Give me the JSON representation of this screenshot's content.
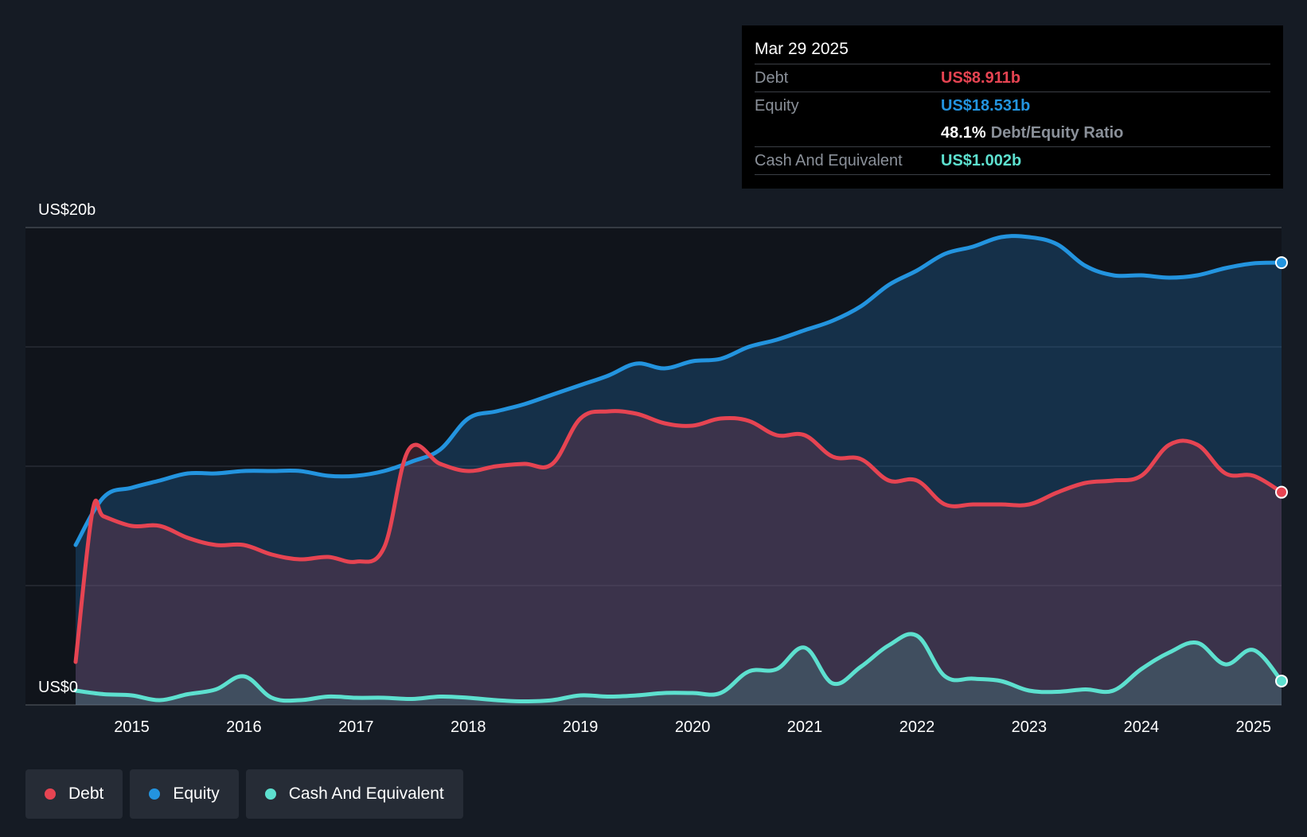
{
  "chart_data": {
    "type": "area",
    "title": "",
    "xlabel": "",
    "ylabel": "",
    "ylim": [
      0,
      20
    ],
    "y_unit": "US$ billions",
    "y_tick_labels": [
      {
        "value": 20,
        "label": "US$20b"
      },
      {
        "value": 0,
        "label": "US$0"
      }
    ],
    "gridlines_y": [
      0,
      5,
      10,
      15,
      20
    ],
    "x_range": [
      2014.5,
      2025.25
    ],
    "x_ticks": [
      2015,
      2016,
      2017,
      2018,
      2019,
      2020,
      2021,
      2022,
      2023,
      2024,
      2025
    ],
    "series": [
      {
        "name": "Equity",
        "color": "#2394df",
        "points": [
          [
            2014.5,
            6.7
          ],
          [
            2014.75,
            8.7
          ],
          [
            2015.0,
            9.1
          ],
          [
            2015.25,
            9.4
          ],
          [
            2015.5,
            9.7
          ],
          [
            2015.75,
            9.7
          ],
          [
            2016.0,
            9.8
          ],
          [
            2016.25,
            9.8
          ],
          [
            2016.5,
            9.8
          ],
          [
            2016.75,
            9.6
          ],
          [
            2017.0,
            9.6
          ],
          [
            2017.25,
            9.8
          ],
          [
            2017.5,
            10.2
          ],
          [
            2017.75,
            10.7
          ],
          [
            2018.0,
            12.0
          ],
          [
            2018.25,
            12.3
          ],
          [
            2018.5,
            12.6
          ],
          [
            2018.75,
            13.0
          ],
          [
            2019.0,
            13.4
          ],
          [
            2019.25,
            13.8
          ],
          [
            2019.5,
            14.3
          ],
          [
            2019.75,
            14.1
          ],
          [
            2020.0,
            14.4
          ],
          [
            2020.25,
            14.5
          ],
          [
            2020.5,
            15.0
          ],
          [
            2020.75,
            15.3
          ],
          [
            2021.0,
            15.7
          ],
          [
            2021.25,
            16.1
          ],
          [
            2021.5,
            16.7
          ],
          [
            2021.75,
            17.6
          ],
          [
            2022.0,
            18.2
          ],
          [
            2022.25,
            18.9
          ],
          [
            2022.5,
            19.2
          ],
          [
            2022.75,
            19.6
          ],
          [
            2023.0,
            19.6
          ],
          [
            2023.25,
            19.3
          ],
          [
            2023.5,
            18.4
          ],
          [
            2023.75,
            18.0
          ],
          [
            2024.0,
            18.0
          ],
          [
            2024.25,
            17.9
          ],
          [
            2024.5,
            18.0
          ],
          [
            2024.75,
            18.3
          ],
          [
            2025.0,
            18.5
          ],
          [
            2025.25,
            18.531
          ]
        ]
      },
      {
        "name": "Debt",
        "color": "#e64452",
        "points": [
          [
            2014.5,
            1.8
          ],
          [
            2014.65,
            8.1
          ],
          [
            2014.75,
            7.9
          ],
          [
            2015.0,
            7.5
          ],
          [
            2015.25,
            7.5
          ],
          [
            2015.5,
            7.0
          ],
          [
            2015.75,
            6.7
          ],
          [
            2016.0,
            6.7
          ],
          [
            2016.25,
            6.3
          ],
          [
            2016.5,
            6.1
          ],
          [
            2016.75,
            6.2
          ],
          [
            2017.0,
            6.0
          ],
          [
            2017.25,
            6.6
          ],
          [
            2017.47,
            10.7
          ],
          [
            2017.75,
            10.1
          ],
          [
            2018.0,
            9.8
          ],
          [
            2018.25,
            10.0
          ],
          [
            2018.5,
            10.1
          ],
          [
            2018.75,
            10.1
          ],
          [
            2019.0,
            12.0
          ],
          [
            2019.25,
            12.3
          ],
          [
            2019.5,
            12.2
          ],
          [
            2019.75,
            11.8
          ],
          [
            2020.0,
            11.7
          ],
          [
            2020.25,
            12.0
          ],
          [
            2020.5,
            11.9
          ],
          [
            2020.75,
            11.3
          ],
          [
            2021.0,
            11.3
          ],
          [
            2021.25,
            10.4
          ],
          [
            2021.5,
            10.3
          ],
          [
            2021.75,
            9.4
          ],
          [
            2022.0,
            9.4
          ],
          [
            2022.25,
            8.4
          ],
          [
            2022.5,
            8.4
          ],
          [
            2022.75,
            8.4
          ],
          [
            2023.0,
            8.4
          ],
          [
            2023.25,
            8.9
          ],
          [
            2023.5,
            9.3
          ],
          [
            2023.75,
            9.4
          ],
          [
            2024.0,
            9.6
          ],
          [
            2024.25,
            10.9
          ],
          [
            2024.5,
            10.9
          ],
          [
            2024.75,
            9.7
          ],
          [
            2025.0,
            9.6
          ],
          [
            2025.25,
            8.911
          ]
        ]
      },
      {
        "name": "Cash And Equivalent",
        "color": "#5de0cf",
        "points": [
          [
            2014.5,
            0.6
          ],
          [
            2014.75,
            0.45
          ],
          [
            2015.0,
            0.4
          ],
          [
            2015.25,
            0.2
          ],
          [
            2015.5,
            0.45
          ],
          [
            2015.75,
            0.65
          ],
          [
            2016.0,
            1.2
          ],
          [
            2016.25,
            0.3
          ],
          [
            2016.5,
            0.2
          ],
          [
            2016.75,
            0.35
          ],
          [
            2017.0,
            0.3
          ],
          [
            2017.25,
            0.3
          ],
          [
            2017.5,
            0.25
          ],
          [
            2017.75,
            0.35
          ],
          [
            2018.0,
            0.3
          ],
          [
            2018.25,
            0.2
          ],
          [
            2018.5,
            0.15
          ],
          [
            2018.75,
            0.2
          ],
          [
            2019.0,
            0.4
          ],
          [
            2019.25,
            0.35
          ],
          [
            2019.5,
            0.4
          ],
          [
            2019.75,
            0.5
          ],
          [
            2020.0,
            0.5
          ],
          [
            2020.25,
            0.5
          ],
          [
            2020.5,
            1.4
          ],
          [
            2020.75,
            1.5
          ],
          [
            2021.0,
            2.4
          ],
          [
            2021.25,
            0.9
          ],
          [
            2021.5,
            1.6
          ],
          [
            2021.75,
            2.5
          ],
          [
            2022.0,
            2.9
          ],
          [
            2022.25,
            1.2
          ],
          [
            2022.5,
            1.1
          ],
          [
            2022.75,
            1.0
          ],
          [
            2023.0,
            0.6
          ],
          [
            2023.25,
            0.55
          ],
          [
            2023.5,
            0.65
          ],
          [
            2023.75,
            0.6
          ],
          [
            2024.0,
            1.5
          ],
          [
            2024.25,
            2.2
          ],
          [
            2024.5,
            2.6
          ],
          [
            2024.75,
            1.7
          ],
          [
            2025.0,
            2.3
          ],
          [
            2025.25,
            1.002
          ]
        ]
      }
    ],
    "tooltip": {
      "date": "Mar 29 2025",
      "debt_label": "Debt",
      "debt_value": "US$8.911b",
      "equity_label": "Equity",
      "equity_value": "US$18.531b",
      "ratio_value": "48.1%",
      "ratio_label": "Debt/Equity Ratio",
      "cash_label": "Cash And Equivalent",
      "cash_value": "US$1.002b"
    },
    "legend": [
      {
        "name": "Debt",
        "color": "#e64452"
      },
      {
        "name": "Equity",
        "color": "#2394df"
      },
      {
        "name": "Cash And Equivalent",
        "color": "#5de0cf"
      }
    ]
  },
  "colors": {
    "background": "#151b24",
    "plot_background": "#10141b",
    "grid": "#2c323b",
    "debt": "#e64452",
    "equity": "#2394df",
    "cash": "#5de0cf"
  }
}
